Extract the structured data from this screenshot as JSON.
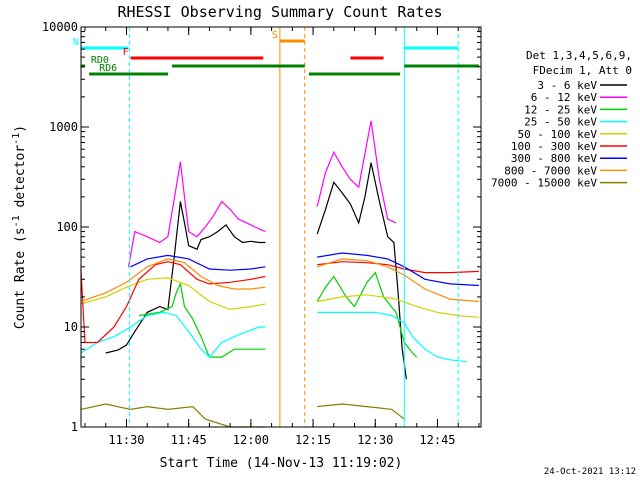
{
  "chart_data": {
    "type": "line",
    "title": "RHESSI Observing Summary Count Rates",
    "xlabel": "Start Time (14-Nov-13 11:19:02)",
    "ylabel": "Count Rate (s⁻¹ detector⁻¹)",
    "ylabel_main": "Count Rate (s",
    "ylabel_mid": " detector",
    "ylabel_end": ")",
    "ylabel_sup": "-1",
    "yscale": "log",
    "ylim": [
      1,
      10000
    ],
    "xlim": [
      "11:19:02",
      "12:55:30"
    ],
    "x_tick_labels": [
      "11:30",
      "11:45",
      "12:00",
      "12:15",
      "12:30",
      "12:45"
    ],
    "y_tick_labels": [
      "1",
      "10",
      "100",
      "1000",
      "10000"
    ],
    "timestamp": "24-Oct-2021 13:12",
    "legend": {
      "placement": "right",
      "header_lines": [
        "Det 1,3,4,5,6,9,",
        "FDecim 1, Att 0"
      ],
      "entries": [
        {
          "label": "3 - 6 keV",
          "color": "#000000"
        },
        {
          "label": "6 - 12 keV",
          "color": "#ff00ff"
        },
        {
          "label": "12 - 25 keV",
          "color": "#00d000"
        },
        {
          "label": "25 - 50 keV",
          "color": "#00ffff"
        },
        {
          "label": "50 - 100 keV",
          "color": "#d2d200"
        },
        {
          "label": "100 - 300 keV",
          "color": "#ff0000"
        },
        {
          "label": "300 - 800 keV",
          "color": "#0000ff"
        },
        {
          "label": "800 - 7000 keV",
          "color": "#ff8c00"
        },
        {
          "label": "7000 - 15000 keV",
          "color": "#8b7d00"
        }
      ]
    },
    "flags": [
      {
        "label": "N",
        "color": "#00ffff",
        "segments": [
          [
            "11:19:00",
            "11:30:30"
          ],
          [
            "12:37:00",
            "12:50:00"
          ]
        ]
      },
      {
        "label": "F",
        "color": "#ff0000",
        "segments": [
          [
            "11:31:00",
            "12:03:00"
          ],
          [
            "12:24:00",
            "12:32:00"
          ]
        ]
      },
      {
        "label": "S",
        "color": "#ff8c00",
        "segments": [
          [
            "12:07:00",
            "12:13:00"
          ]
        ]
      },
      {
        "label": "RD0",
        "color": "#008000",
        "segments": [
          [
            "11:19:00",
            "11:20:00"
          ],
          [
            "11:41:00",
            "12:13:00"
          ],
          [
            "12:37:00",
            "12:55:00"
          ]
        ]
      },
      {
        "label": "RD6",
        "color": "#008000",
        "segments": [
          [
            "11:21:00",
            "11:40:00"
          ],
          [
            "12:14:00",
            "12:36:00"
          ]
        ]
      }
    ],
    "vlines": [
      {
        "time": "11:30:45",
        "color": "#00ffff",
        "style": "dashed"
      },
      {
        "time": "12:07:00",
        "color": "#ff8c00",
        "style": "solid"
      },
      {
        "time": "12:13:00",
        "color": "#ff8c00",
        "style": "dashed"
      },
      {
        "time": "12:37:00",
        "color": "#00ffff",
        "style": "solid"
      },
      {
        "time": "12:50:00",
        "color": "#00ffff",
        "style": "dashed"
      }
    ],
    "series": [
      {
        "name": "3 - 6 keV",
        "color": "#000000",
        "points": [
          [
            "11:25:00",
            5.5
          ],
          [
            "11:28:00",
            5.9
          ],
          [
            "11:30:00",
            6.6
          ],
          [
            "11:32:00",
            9
          ],
          [
            "11:35:00",
            14
          ],
          [
            "11:38:00",
            16
          ],
          [
            "11:40:00",
            15
          ],
          [
            "11:41:30",
            50
          ],
          [
            "11:43:00",
            180
          ],
          [
            "11:44:00",
            110
          ],
          [
            "11:45:00",
            65
          ],
          [
            "11:47:00",
            60
          ],
          [
            "11:48:00",
            75
          ],
          [
            "11:50:00",
            80
          ],
          [
            "11:52:00",
            90
          ],
          [
            "11:54:00",
            105
          ],
          [
            "11:56:00",
            80
          ],
          [
            "11:58:00",
            70
          ],
          [
            "12:00:00",
            72
          ],
          [
            "12:02:00",
            70
          ],
          [
            "12:03:30",
            70
          ]
        ]
      },
      {
        "name": "3 - 6 keV",
        "color": "#000000",
        "points": [
          [
            "12:16:00",
            85
          ],
          [
            "12:18:00",
            150
          ],
          [
            "12:20:00",
            280
          ],
          [
            "12:22:00",
            220
          ],
          [
            "12:24:00",
            170
          ],
          [
            "12:26:00",
            110
          ],
          [
            "12:27:30",
            200
          ],
          [
            "12:29:00",
            440
          ],
          [
            "12:31:00",
            180
          ],
          [
            "12:33:00",
            80
          ],
          [
            "12:34:30",
            70
          ],
          [
            "12:35:30",
            22
          ],
          [
            "12:36:30",
            6
          ],
          [
            "12:37:30",
            3
          ]
        ]
      },
      {
        "name": "6 - 12 keV",
        "color": "#ff00ff",
        "points": [
          [
            "11:30:30",
            40
          ],
          [
            "11:32:00",
            90
          ],
          [
            "11:35:00",
            80
          ],
          [
            "11:38:00",
            70
          ],
          [
            "11:40:00",
            80
          ],
          [
            "11:42:00",
            250
          ],
          [
            "11:43:00",
            450
          ],
          [
            "11:44:00",
            200
          ],
          [
            "11:45:00",
            90
          ],
          [
            "11:47:00",
            80
          ],
          [
            "11:49:00",
            100
          ],
          [
            "11:51:00",
            130
          ],
          [
            "11:53:00",
            180
          ],
          [
            "11:55:00",
            150
          ],
          [
            "11:57:00",
            120
          ],
          [
            "11:59:00",
            110
          ],
          [
            "12:01:00",
            100
          ],
          [
            "12:03:30",
            90
          ]
        ]
      },
      {
        "name": "6 - 12 keV",
        "color": "#ff00ff",
        "points": [
          [
            "12:16:00",
            160
          ],
          [
            "12:18:00",
            350
          ],
          [
            "12:20:00",
            560
          ],
          [
            "12:22:00",
            400
          ],
          [
            "12:24:00",
            300
          ],
          [
            "12:26:00",
            250
          ],
          [
            "12:28:00",
            700
          ],
          [
            "12:29:00",
            1150
          ],
          [
            "12:31:00",
            300
          ],
          [
            "12:33:00",
            120
          ],
          [
            "12:35:00",
            110
          ]
        ]
      },
      {
        "name": "12 - 25 keV",
        "color": "#00d000",
        "points": [
          [
            "11:33:00",
            13
          ],
          [
            "11:38:00",
            14
          ],
          [
            "11:41:00",
            16
          ],
          [
            "11:42:00",
            22
          ],
          [
            "11:43:00",
            27
          ],
          [
            "11:44:00",
            16
          ],
          [
            "11:46:00",
            12
          ],
          [
            "11:48:00",
            8
          ],
          [
            "11:50:00",
            5
          ],
          [
            "11:53:00",
            5
          ],
          [
            "11:56:00",
            6
          ],
          [
            "12:00:00",
            6
          ],
          [
            "12:03:30",
            6
          ]
        ]
      },
      {
        "name": "12 - 25 keV",
        "color": "#00d000",
        "points": [
          [
            "12:16:00",
            18
          ],
          [
            "12:18:00",
            25
          ],
          [
            "12:20:00",
            32
          ],
          [
            "12:23:00",
            20
          ],
          [
            "12:25:00",
            16
          ],
          [
            "12:28:00",
            28
          ],
          [
            "12:30:00",
            35
          ],
          [
            "12:32:00",
            20
          ],
          [
            "12:35:00",
            14
          ],
          [
            "12:37:00",
            7
          ],
          [
            "12:39:00",
            5.5
          ],
          [
            "12:40:00",
            5
          ]
        ]
      },
      {
        "name": "25 - 50 keV",
        "color": "#00ffff",
        "points": [
          [
            "11:19:00",
            5.5
          ],
          [
            "11:23:00",
            7
          ],
          [
            "11:27:00",
            8
          ],
          [
            "11:31:00",
            10
          ],
          [
            "11:35:00",
            13
          ],
          [
            "11:39:00",
            14
          ],
          [
            "11:42:00",
            13
          ],
          [
            "11:45:00",
            9
          ],
          [
            "11:48:00",
            6
          ],
          [
            "11:50:00",
            5
          ],
          [
            "11:53:00",
            7
          ],
          [
            "11:56:00",
            8
          ],
          [
            "11:59:00",
            9
          ],
          [
            "12:02:00",
            10
          ],
          [
            "12:03:30",
            10
          ]
        ]
      },
      {
        "name": "25 - 50 keV",
        "color": "#00ffff",
        "points": [
          [
            "12:16:00",
            14
          ],
          [
            "12:20:00",
            14
          ],
          [
            "12:25:00",
            14
          ],
          [
            "12:30:00",
            14
          ],
          [
            "12:34:00",
            13
          ],
          [
            "12:37:00",
            11
          ],
          [
            "12:39:00",
            8
          ],
          [
            "12:42:00",
            6
          ],
          [
            "12:45:00",
            5
          ],
          [
            "12:48:00",
            4.7
          ],
          [
            "12:52:00",
            4.5
          ]
        ]
      },
      {
        "name": "50 - 100 keV",
        "color": "#d2d200",
        "points": [
          [
            "11:19:00",
            17
          ],
          [
            "11:25:00",
            20
          ],
          [
            "11:30:00",
            25
          ],
          [
            "11:35:00",
            30
          ],
          [
            "11:40:00",
            31
          ],
          [
            "11:45:00",
            26
          ],
          [
            "11:50:00",
            18
          ],
          [
            "11:55:00",
            15
          ],
          [
            "12:00:00",
            16
          ],
          [
            "12:03:30",
            17
          ]
        ]
      },
      {
        "name": "50 - 100 keV",
        "color": "#d2d200",
        "points": [
          [
            "12:16:00",
            18
          ],
          [
            "12:22:00",
            20
          ],
          [
            "12:28:00",
            21
          ],
          [
            "12:35:00",
            19
          ],
          [
            "12:40:00",
            16
          ],
          [
            "12:45:00",
            14
          ],
          [
            "12:50:00",
            13
          ],
          [
            "12:55:00",
            12.5
          ]
        ]
      },
      {
        "name": "100 - 300 keV",
        "color": "#ff0000",
        "points": [
          [
            "11:19:00",
            38
          ],
          [
            "11:20:00",
            7
          ],
          [
            "11:23:00",
            7
          ],
          [
            "11:27:00",
            10
          ],
          [
            "11:30:00",
            16
          ],
          [
            "11:33:00",
            30
          ],
          [
            "11:37:00",
            42
          ],
          [
            "11:40:00",
            45
          ],
          [
            "11:43:00",
            42
          ],
          [
            "11:47:00",
            30
          ],
          [
            "11:50:00",
            27
          ],
          [
            "11:55:00",
            28
          ],
          [
            "12:00:00",
            30
          ],
          [
            "12:03:30",
            32
          ]
        ]
      },
      {
        "name": "100 - 300 keV",
        "color": "#ff0000",
        "points": [
          [
            "12:16:00",
            42
          ],
          [
            "12:22:00",
            45
          ],
          [
            "12:28:00",
            44
          ],
          [
            "12:33:00",
            42
          ],
          [
            "12:37:00",
            38
          ],
          [
            "12:42:00",
            35
          ],
          [
            "12:48:00",
            35
          ],
          [
            "12:55:00",
            36
          ]
        ]
      },
      {
        "name": "300 - 800 keV",
        "color": "#0000ff",
        "points": [
          [
            "11:31:00",
            40
          ],
          [
            "11:35:00",
            48
          ],
          [
            "11:40:00",
            52
          ],
          [
            "11:45:00",
            48
          ],
          [
            "11:50:00",
            38
          ],
          [
            "11:55:00",
            37
          ],
          [
            "12:00:00",
            38
          ],
          [
            "12:03:30",
            40
          ]
        ]
      },
      {
        "name": "300 - 800 keV",
        "color": "#0000ff",
        "points": [
          [
            "12:16:00",
            50
          ],
          [
            "12:22:00",
            55
          ],
          [
            "12:28:00",
            52
          ],
          [
            "12:33:00",
            48
          ],
          [
            "12:37:00",
            40
          ],
          [
            "12:42:00",
            30
          ],
          [
            "12:48:00",
            27
          ],
          [
            "12:55:00",
            26
          ]
        ]
      },
      {
        "name": "800 - 7000 keV",
        "color": "#ff8c00",
        "points": [
          [
            "11:19:00",
            18
          ],
          [
            "11:25:00",
            22
          ],
          [
            "11:30:00",
            28
          ],
          [
            "11:35:00",
            40
          ],
          [
            "11:40:00",
            48
          ],
          [
            "11:44:00",
            44
          ],
          [
            "11:48:00",
            32
          ],
          [
            "11:52:00",
            26
          ],
          [
            "11:56:00",
            24
          ],
          [
            "12:00:00",
            24
          ],
          [
            "12:03:30",
            25
          ]
        ]
      },
      {
        "name": "800 - 7000 keV",
        "color": "#ff8c00",
        "points": [
          [
            "12:16:00",
            40
          ],
          [
            "12:22:00",
            48
          ],
          [
            "12:28:00",
            46
          ],
          [
            "12:33:00",
            40
          ],
          [
            "12:37:00",
            33
          ],
          [
            "12:42:00",
            24
          ],
          [
            "12:48:00",
            19
          ],
          [
            "12:55:00",
            18
          ]
        ]
      },
      {
        "name": "7000 - 15000 keV",
        "color": "#8b7d00",
        "points": [
          [
            "11:19:00",
            1.5
          ],
          [
            "11:25:00",
            1.7
          ],
          [
            "11:31:00",
            1.5
          ],
          [
            "11:35:00",
            1.6
          ],
          [
            "11:40:00",
            1.5
          ],
          [
            "11:46:00",
            1.6
          ],
          [
            "11:49:00",
            1.2
          ],
          [
            "11:55:00",
            1
          ],
          [
            "12:03:30",
            1
          ]
        ]
      },
      {
        "name": "7000 - 15000 keV",
        "color": "#8b7d00",
        "points": [
          [
            "12:16:00",
            1.6
          ],
          [
            "12:22:00",
            1.7
          ],
          [
            "12:28:00",
            1.6
          ],
          [
            "12:34:00",
            1.5
          ],
          [
            "12:37:00",
            1.2
          ]
        ]
      }
    ]
  }
}
